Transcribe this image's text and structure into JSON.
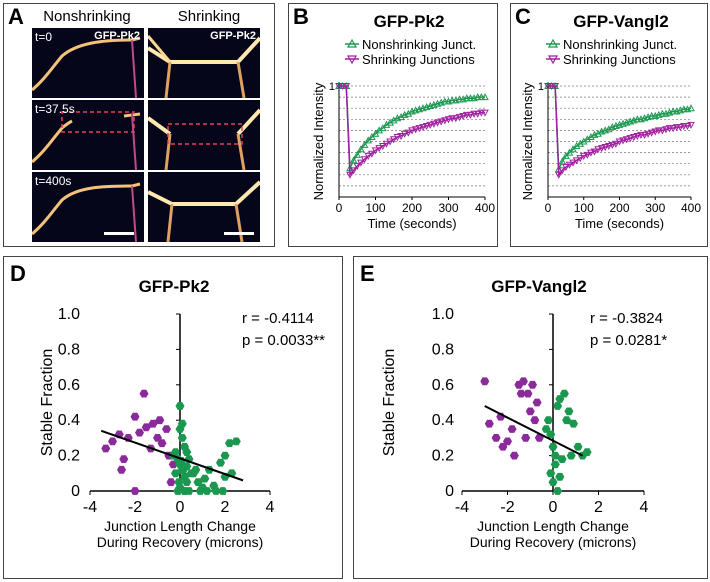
{
  "panelA": {
    "label": "A",
    "col_nonshrinking": "Nonshrinking",
    "col_shrinking": "Shrinking",
    "protein_label": "GFP-Pk2",
    "times": [
      "t=0",
      "t=37.5s",
      "t=400s"
    ]
  },
  "chart_data": [
    {
      "id": "B",
      "type": "line",
      "panel_label": "B",
      "title": "GFP-Pk2",
      "xlabel": "Time (seconds)",
      "ylabel": "Normalized Intensity",
      "xlim": [
        0,
        400
      ],
      "ylim": [
        0,
        1
      ],
      "xticks": [
        0,
        100,
        200,
        300,
        400
      ],
      "yticks": [
        1
      ],
      "grid": true,
      "legend": "top",
      "series": [
        {
          "name": "Nonshrinking Junct.",
          "color": "#1a9850",
          "marker": "triangle-up",
          "x": [
            0,
            10,
            20,
            30,
            40,
            50,
            60,
            70,
            80,
            90,
            100,
            110,
            120,
            130,
            140,
            150,
            160,
            170,
            180,
            190,
            200,
            210,
            220,
            230,
            240,
            250,
            260,
            270,
            280,
            290,
            300,
            310,
            320,
            330,
            340,
            350,
            360,
            370,
            380,
            390,
            400
          ],
          "y": [
            1.0,
            1.0,
            1.0,
            0.26,
            0.33,
            0.38,
            0.43,
            0.47,
            0.51,
            0.54,
            0.57,
            0.6,
            0.62,
            0.65,
            0.67,
            0.69,
            0.71,
            0.72,
            0.74,
            0.75,
            0.77,
            0.78,
            0.79,
            0.8,
            0.81,
            0.82,
            0.83,
            0.84,
            0.85,
            0.86,
            0.86,
            0.87,
            0.87,
            0.88,
            0.88,
            0.89,
            0.89,
            0.89,
            0.9,
            0.9,
            0.9
          ]
        },
        {
          "name": "Shrinking Junctions",
          "color": "#a020a0",
          "marker": "triangle-down",
          "x": [
            0,
            10,
            20,
            30,
            40,
            50,
            60,
            70,
            80,
            90,
            100,
            110,
            120,
            130,
            140,
            150,
            160,
            170,
            180,
            190,
            200,
            210,
            220,
            230,
            240,
            250,
            260,
            270,
            280,
            290,
            300,
            310,
            320,
            330,
            340,
            350,
            360,
            370,
            380,
            390,
            400
          ],
          "y": [
            1.0,
            1.0,
            1.0,
            0.2,
            0.24,
            0.28,
            0.31,
            0.34,
            0.37,
            0.39,
            0.42,
            0.44,
            0.46,
            0.48,
            0.5,
            0.52,
            0.54,
            0.55,
            0.57,
            0.58,
            0.6,
            0.61,
            0.62,
            0.63,
            0.64,
            0.65,
            0.66,
            0.67,
            0.68,
            0.69,
            0.7,
            0.71,
            0.71,
            0.72,
            0.73,
            0.74,
            0.74,
            0.75,
            0.75,
            0.76,
            0.76
          ]
        }
      ]
    },
    {
      "id": "C",
      "type": "line",
      "panel_label": "C",
      "title": "GFP-Vangl2",
      "xlabel": "Time (seconds)",
      "ylabel": "Normalized Intensity",
      "xlim": [
        0,
        400
      ],
      "ylim": [
        0,
        1
      ],
      "xticks": [
        0,
        100,
        200,
        300,
        400
      ],
      "yticks": [
        1
      ],
      "grid": true,
      "legend": "top",
      "series": [
        {
          "name": "Nonshrinking Junct.",
          "color": "#1a9850",
          "marker": "triangle-up",
          "x": [
            0,
            10,
            20,
            30,
            40,
            50,
            60,
            70,
            80,
            90,
            100,
            110,
            120,
            130,
            140,
            150,
            160,
            170,
            180,
            190,
            200,
            210,
            220,
            230,
            240,
            250,
            260,
            270,
            280,
            290,
            300,
            310,
            320,
            330,
            340,
            350,
            360,
            370,
            380,
            390,
            400
          ],
          "y": [
            1.0,
            1.0,
            1.0,
            0.25,
            0.32,
            0.37,
            0.4,
            0.43,
            0.46,
            0.48,
            0.5,
            0.52,
            0.54,
            0.56,
            0.57,
            0.59,
            0.6,
            0.61,
            0.63,
            0.64,
            0.65,
            0.66,
            0.67,
            0.68,
            0.69,
            0.7,
            0.7,
            0.71,
            0.72,
            0.73,
            0.73,
            0.74,
            0.75,
            0.75,
            0.76,
            0.77,
            0.77,
            0.78,
            0.79,
            0.79,
            0.8
          ]
        },
        {
          "name": "Shrinking Junctions",
          "color": "#a020a0",
          "marker": "triangle-down",
          "x": [
            0,
            10,
            20,
            30,
            40,
            50,
            60,
            70,
            80,
            90,
            100,
            110,
            120,
            130,
            140,
            150,
            160,
            170,
            180,
            190,
            200,
            210,
            220,
            230,
            240,
            250,
            260,
            270,
            280,
            290,
            300,
            310,
            320,
            330,
            340,
            350,
            360,
            370,
            380,
            390,
            400
          ],
          "y": [
            1.0,
            1.0,
            1.0,
            0.2,
            0.24,
            0.27,
            0.29,
            0.31,
            0.33,
            0.35,
            0.37,
            0.38,
            0.4,
            0.41,
            0.43,
            0.44,
            0.45,
            0.46,
            0.47,
            0.48,
            0.5,
            0.51,
            0.52,
            0.53,
            0.54,
            0.55,
            0.56,
            0.56,
            0.57,
            0.58,
            0.59,
            0.6,
            0.6,
            0.61,
            0.62,
            0.62,
            0.63,
            0.63,
            0.64,
            0.64,
            0.65
          ]
        }
      ]
    },
    {
      "id": "D",
      "type": "scatter",
      "panel_label": "D",
      "title": "GFP-Pk2",
      "xlabel": [
        "Junction Length Change",
        "During Recovery (microns)"
      ],
      "ylabel": "Stable Fraction",
      "xlim": [
        -4,
        4
      ],
      "ylim": [
        0,
        1.0
      ],
      "xticks": [
        -4,
        -2,
        0,
        2,
        4
      ],
      "yticks": [
        0,
        0.2,
        0.4,
        0.6,
        0.8,
        1.0
      ],
      "ytick_labels": [
        "0",
        "0.2",
        "0.4",
        "0.6",
        "0.8",
        "1.0"
      ],
      "annotations": [
        "r = -0.4114",
        "p = 0.0033**"
      ],
      "fit_line": {
        "x": [
          -3.5,
          2.8
        ],
        "y": [
          0.34,
          0.06
        ]
      },
      "series": [
        {
          "name": "shrinking",
          "color": "#8b2a9b",
          "x": [
            -3.3,
            -3.0,
            -2.7,
            -2.5,
            -2.3,
            -2.0,
            -1.8,
            -1.5,
            -1.2,
            -1.0,
            -0.8,
            -0.5,
            -0.3,
            -2.6,
            -1.6,
            -0.9,
            -0.6,
            -1.3,
            -2.0,
            -0.4
          ],
          "y": [
            0.24,
            0.28,
            0.32,
            0.18,
            0.3,
            0.0,
            0.33,
            0.36,
            0.38,
            0.3,
            0.27,
            0.2,
            0.15,
            0.12,
            0.55,
            0.4,
            0.35,
            0.24,
            0.42,
            0.05
          ]
        },
        {
          "name": "nonshrinking",
          "color": "#1a9850",
          "x": [
            -0.2,
            -0.1,
            0.0,
            0.1,
            0.2,
            0.3,
            -0.3,
            0.0,
            0.1,
            0.2,
            0.4,
            0.6,
            0.8,
            1.0,
            1.2,
            1.5,
            1.8,
            2.0,
            2.2,
            2.5,
            -0.1,
            0.0,
            0.2,
            0.3,
            0.5,
            0.7,
            1.1,
            1.6,
            2.3,
            0.0,
            0.1,
            -0.2,
            0.3,
            0.9,
            1.9,
            0.2,
            0.05,
            -0.05,
            0.15,
            0.4,
            2.0,
            1.3
          ],
          "y": [
            0.22,
            0.18,
            0.15,
            0.12,
            0.08,
            0.05,
            0.2,
            0.48,
            0.3,
            0.25,
            0.18,
            0.1,
            0.05,
            0.02,
            0.0,
            0.03,
            0.16,
            0.08,
            0.27,
            0.28,
            0.0,
            0.02,
            0.0,
            0.14,
            0.1,
            0.12,
            0.07,
            0.0,
            0.1,
            0.35,
            0.38,
            0.1,
            0.22,
            0.0,
            0.0,
            0.0,
            0.17,
            0.05,
            0.12,
            0.0,
            0.2,
            0.12
          ]
        }
      ]
    },
    {
      "id": "E",
      "type": "scatter",
      "panel_label": "E",
      "title": "GFP-Vangl2",
      "xlabel": [
        "Junction Length Change",
        "During Recovery (microns)"
      ],
      "ylabel": "Stable Fraction",
      "xlim": [
        -4,
        4
      ],
      "ylim": [
        0,
        1.0
      ],
      "xticks": [
        -4,
        -2,
        0,
        2,
        4
      ],
      "yticks": [
        0,
        0.2,
        0.4,
        0.6,
        0.8,
        1.0
      ],
      "ytick_labels": [
        "0",
        "0.2",
        "0.4",
        "0.6",
        "0.8",
        "1.0"
      ],
      "annotations": [
        "r = -0.3824",
        "p = 0.0281*"
      ],
      "fit_line": {
        "x": [
          -3.0,
          1.3
        ],
        "y": [
          0.48,
          0.2
        ]
      },
      "series": [
        {
          "name": "shrinking",
          "color": "#8b2a9b",
          "x": [
            -3.0,
            -2.8,
            -2.5,
            -2.3,
            -2.0,
            -1.8,
            -1.5,
            -1.3,
            -1.1,
            -1.0,
            -0.8,
            -0.6,
            -1.7,
            -1.2,
            -0.9,
            -2.2,
            -1.4,
            -0.7
          ],
          "y": [
            0.62,
            0.38,
            0.3,
            0.42,
            0.28,
            0.35,
            0.6,
            0.62,
            0.55,
            0.45,
            0.4,
            0.3,
            0.2,
            0.3,
            0.6,
            0.25,
            0.55,
            0.5
          ]
        },
        {
          "name": "nonshrinking",
          "color": "#1a9850",
          "x": [
            -0.3,
            -0.2,
            -0.1,
            0.0,
            0.1,
            0.2,
            0.3,
            0.5,
            0.7,
            0.9,
            1.1,
            1.3,
            1.5,
            0.0,
            0.2,
            -0.1,
            0.4,
            0.6,
            0.8,
            0.1,
            0.3
          ],
          "y": [
            0.35,
            0.4,
            0.1,
            0.05,
            0.2,
            0.48,
            0.52,
            0.55,
            0.45,
            0.38,
            0.25,
            0.2,
            0.22,
            0.25,
            0.0,
            0.32,
            0.18,
            0.4,
            0.2,
            0.15,
            0.08
          ]
        }
      ]
    }
  ]
}
